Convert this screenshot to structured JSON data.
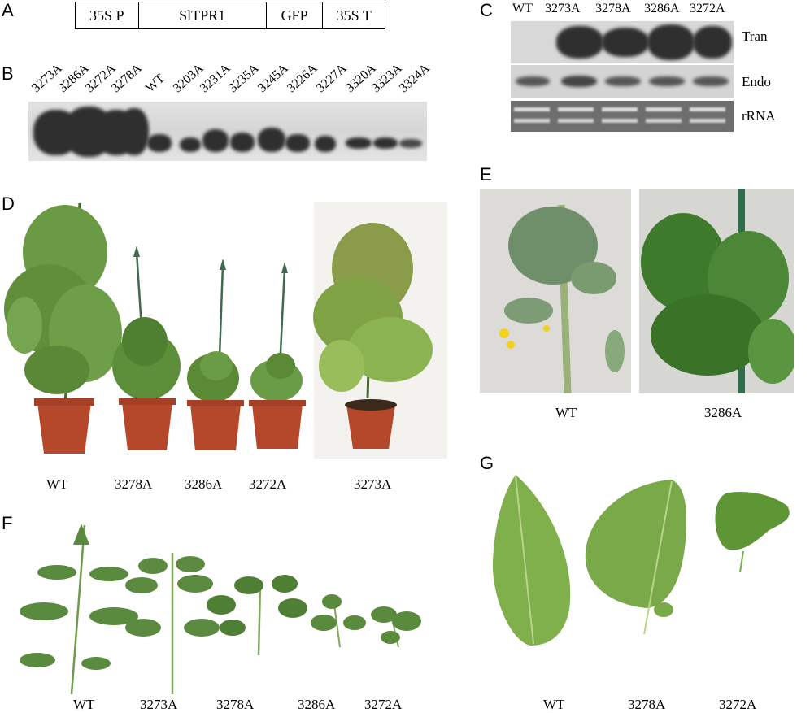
{
  "panels": {
    "a": "A",
    "b": "B",
    "c": "C",
    "d": "D",
    "e": "E",
    "f": "F",
    "g": "G"
  },
  "construct": {
    "segments": [
      "35S P",
      "SlTPR1",
      "GFP",
      "35S T"
    ]
  },
  "blot_b": {
    "lanes": [
      "3273A",
      "3286A",
      "3272A",
      "3278A",
      "WT",
      "3203A",
      "3231A",
      "3235A",
      "3245A",
      "3226A",
      "3227A",
      "3320A",
      "3323A",
      "3324A"
    ]
  },
  "blot_c": {
    "lanes": [
      "WT",
      "3273A",
      "3278A",
      "3286A",
      "3272A"
    ],
    "rows": [
      "Tran",
      "Endo",
      "rRNA"
    ]
  },
  "plants_d": {
    "labels": [
      "WT",
      "3278A",
      "3286A",
      "3272A",
      "3273A"
    ]
  },
  "closeup_e": {
    "labels": [
      "WT",
      "3286A"
    ]
  },
  "leaves_f": {
    "labels": [
      "WT",
      "3273A",
      "3278A",
      "3286A",
      "3272A"
    ]
  },
  "leaflets_g": {
    "labels": [
      "WT",
      "3278A",
      "3272A"
    ]
  },
  "colors": {
    "leaf": "#5f8f3a",
    "pot": "#b5472a",
    "band": "#2f2f2f",
    "flower": "#f2d21c"
  }
}
